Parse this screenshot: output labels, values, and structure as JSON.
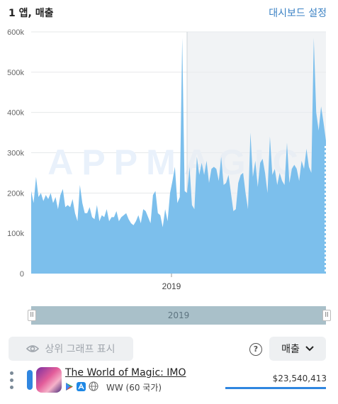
{
  "header": {
    "title": "1 앱, 매출",
    "dashboard_link": "대시보드 설정"
  },
  "chart_data": {
    "type": "area",
    "title": "",
    "xlabel": "",
    "ylabel": "",
    "x_tick_labels": [
      "2019"
    ],
    "y_tick_labels": [
      "0",
      "100k",
      "200k",
      "300k",
      "400k",
      "500k",
      "600k"
    ],
    "ylim": [
      0,
      600000
    ],
    "grid": true,
    "watermark": "APPMAGIC",
    "color": "#7cbfec",
    "series": [
      {
        "values": [
          205000,
          175000,
          240000,
          190000,
          200000,
          180000,
          195000,
          185000,
          200000,
          175000,
          190000,
          160000,
          195000,
          210000,
          165000,
          170000,
          165000,
          185000,
          150000,
          130000,
          220000,
          175000,
          150000,
          150000,
          165000,
          140000,
          135000,
          170000,
          130000,
          145000,
          140000,
          160000,
          130000,
          140000,
          140000,
          155000,
          130000,
          140000,
          145000,
          150000,
          135000,
          125000,
          120000,
          130000,
          145000,
          125000,
          160000,
          155000,
          140000,
          125000,
          195000,
          205000,
          150000,
          145000,
          115000,
          160000,
          130000,
          200000,
          230000,
          265000,
          175000,
          190000,
          585000,
          205000,
          200000,
          265000,
          170000,
          160000,
          290000,
          245000,
          275000,
          245000,
          280000,
          225000,
          260000,
          265000,
          260000,
          230000,
          290000,
          220000,
          225000,
          245000,
          200000,
          155000,
          160000,
          225000,
          245000,
          250000,
          200000,
          160000,
          350000,
          240000,
          280000,
          215000,
          275000,
          285000,
          250000,
          200000,
          340000,
          245000,
          260000,
          220000,
          250000,
          230000,
          220000,
          325000,
          225000,
          260000,
          270000,
          260000,
          230000,
          280000,
          260000,
          310000,
          265000,
          250000,
          585000,
          400000,
          355000,
          415000,
          375000,
          330000
        ]
      }
    ]
  },
  "range": {
    "label": "2019"
  },
  "controls": {
    "top_graph_button": "상위 그래프 표시",
    "metric_select": "매출"
  },
  "app_row": {
    "name": "The World of Magic: IMO",
    "region": "WW (60 국가)",
    "revenue": "$23,540,413",
    "revenue_fraction": 1.0,
    "series_color": "#2f86e0"
  }
}
